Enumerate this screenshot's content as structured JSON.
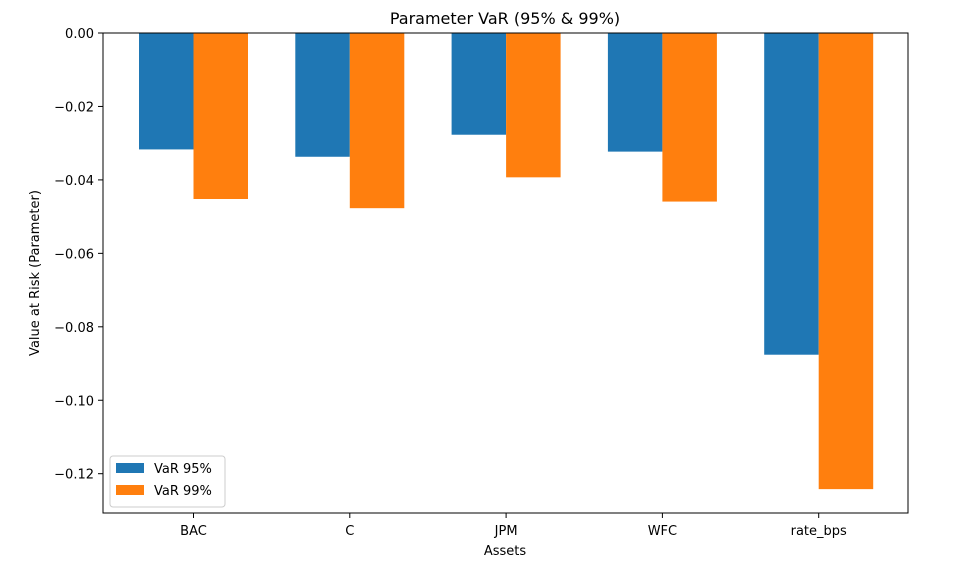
{
  "chart_data": {
    "type": "bar",
    "title": "Parameter VaR (95% & 99%)",
    "xlabel": "Assets",
    "ylabel": "Value at Risk (Parameter)",
    "categories": [
      "BAC",
      "C",
      "JPM",
      "WFC",
      "rate_bps"
    ],
    "series": [
      {
        "name": "VaR 95%",
        "color": "#1f77b4",
        "values": [
          -0.0317,
          -0.0337,
          -0.0277,
          -0.0323,
          -0.0876
        ]
      },
      {
        "name": "VaR 99%",
        "color": "#ff7f0e",
        "values": [
          -0.0452,
          -0.0477,
          -0.0393,
          -0.0459,
          -0.1242
        ]
      }
    ],
    "ylim": [
      -0.1307,
      0.0
    ],
    "yticks": [
      0.0,
      -0.02,
      -0.04,
      -0.06,
      -0.08,
      -0.1,
      -0.12
    ],
    "ytick_labels": [
      "0.00",
      "−0.02",
      "−0.04",
      "−0.06",
      "−0.08",
      "−0.10",
      "−0.12"
    ],
    "grid": false,
    "legend_position": "lower-left"
  }
}
